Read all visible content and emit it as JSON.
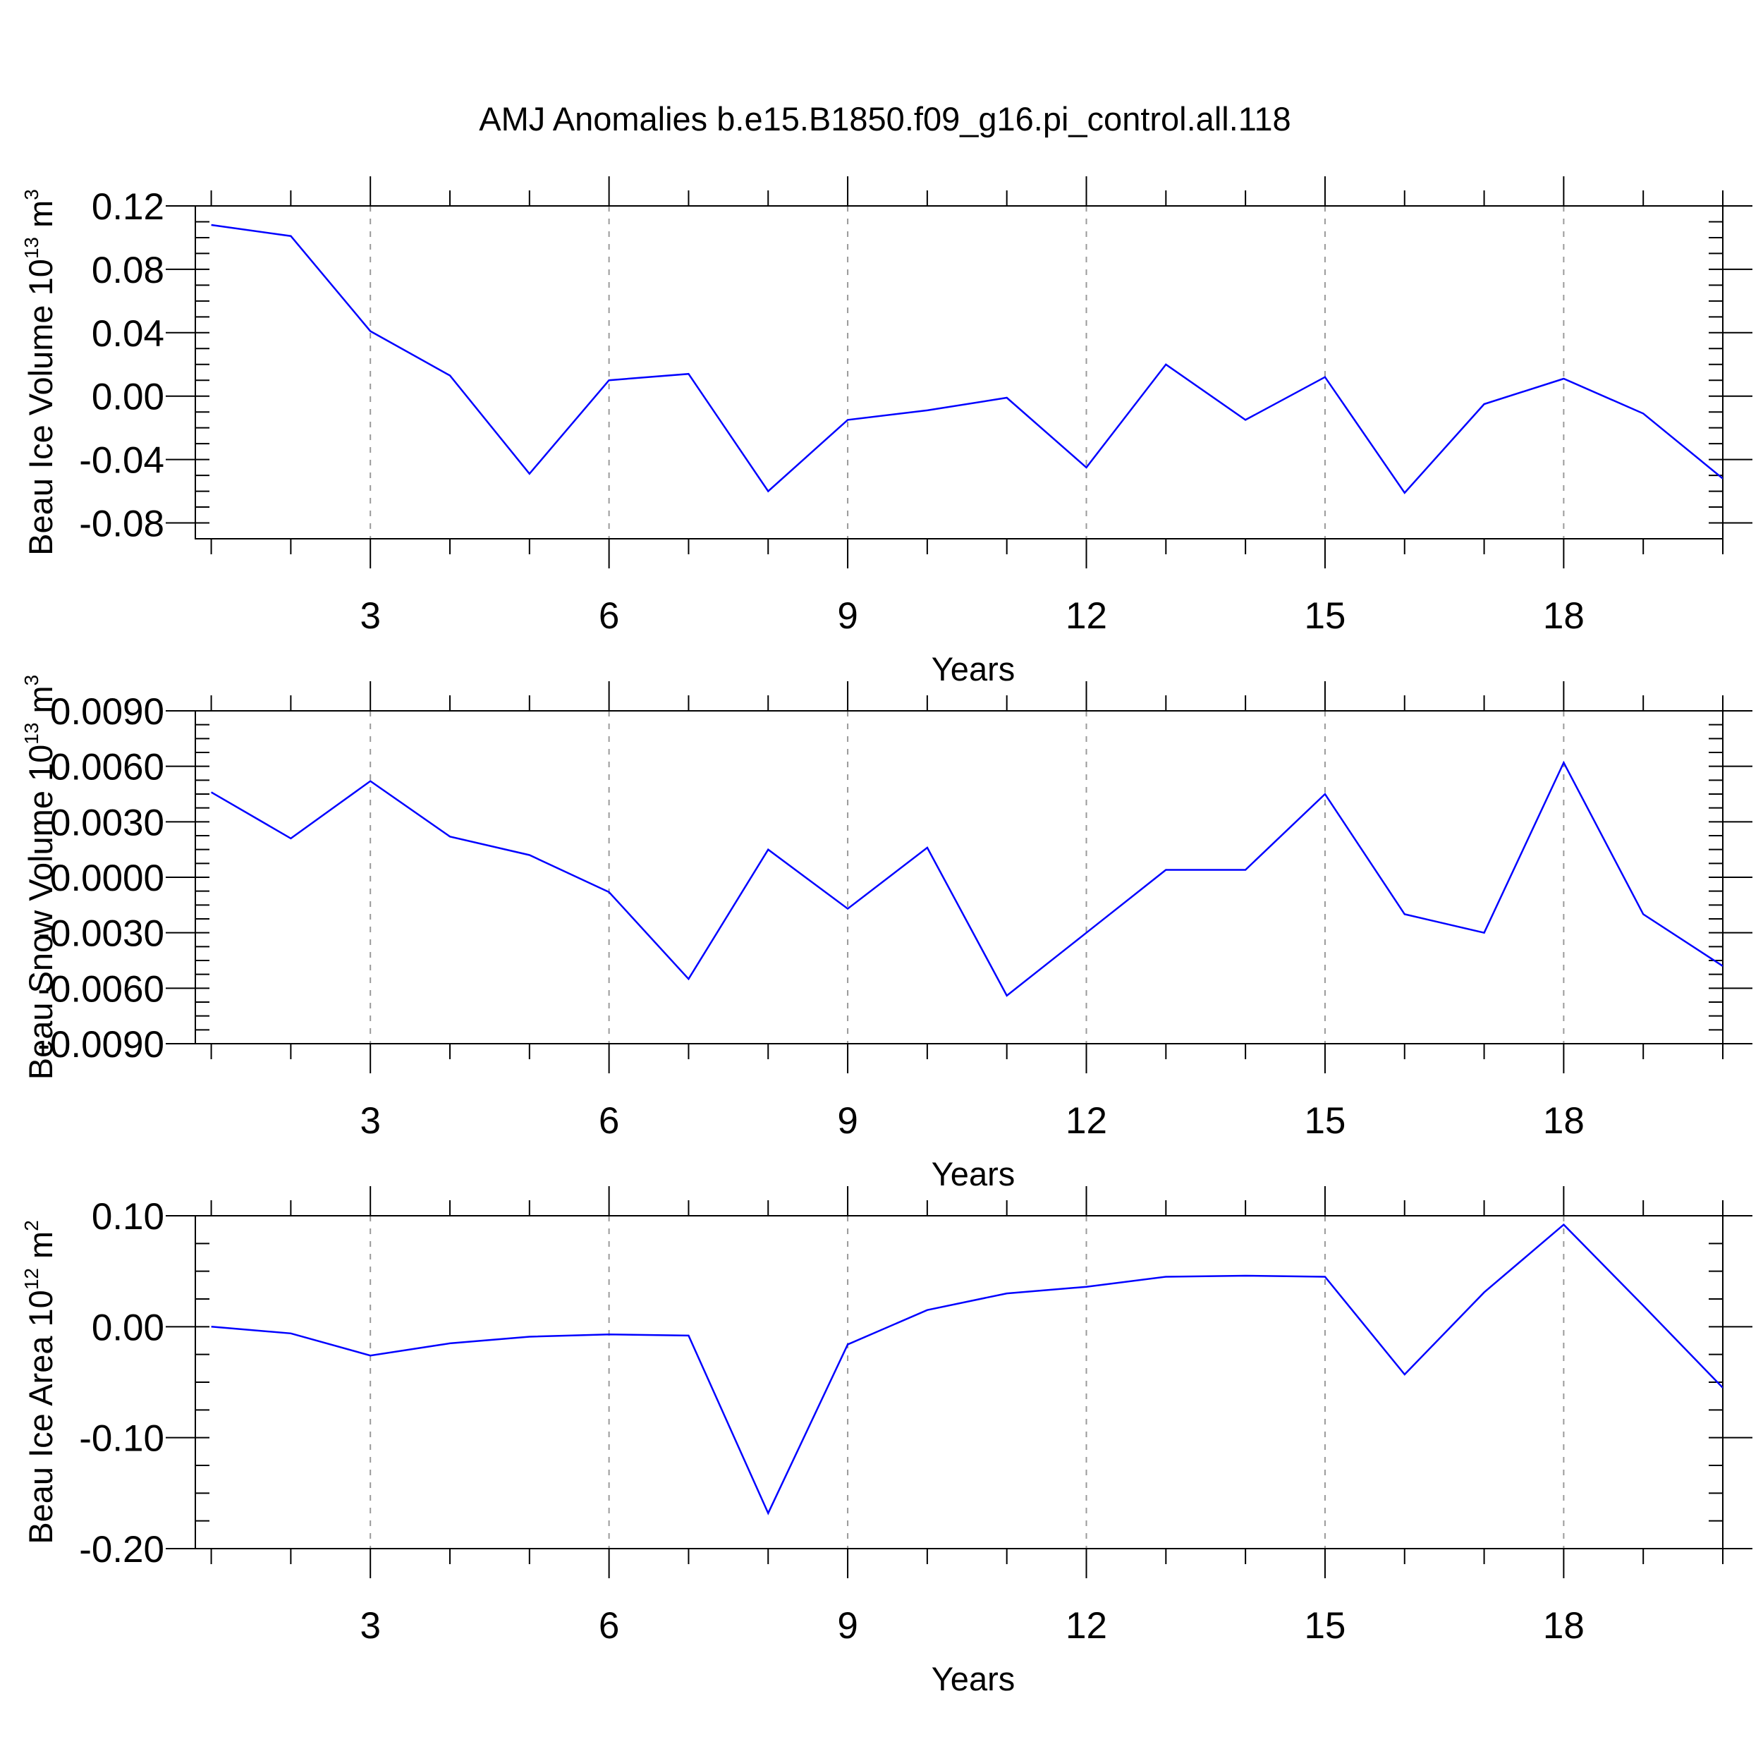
{
  "title": "AMJ Anomalies b.e15.B1850.f09_g16.pi_control.all.118",
  "chart_data": [
    {
      "type": "line",
      "ylabel": "Beau Ice Volume 10",
      "ylabel_exponent": "13",
      "ylabel_unit": " m",
      "ylabel_unit_exponent": "3",
      "xlabel": "Years",
      "x": [
        1,
        2,
        3,
        4,
        5,
        6,
        7,
        8,
        9,
        10,
        11,
        12,
        13,
        14,
        15,
        16,
        17,
        18,
        19,
        20
      ],
      "values": [
        0.108,
        0.101,
        0.041,
        0.013,
        -0.049,
        0.01,
        0.014,
        -0.06,
        -0.015,
        -0.009,
        -0.001,
        -0.045,
        0.02,
        -0.015,
        0.012,
        -0.061,
        -0.005,
        0.011,
        -0.011,
        -0.052
      ],
      "xlim": [
        0.8,
        20
      ],
      "ylim": [
        -0.09,
        0.12
      ],
      "xticks": [
        3,
        6,
        9,
        12,
        15,
        18
      ],
      "xtick_labels": [
        "3",
        "6",
        "9",
        "12",
        "15",
        "18"
      ],
      "yticks": [
        -0.08,
        -0.04,
        0.0,
        0.04,
        0.08,
        0.12
      ],
      "ytick_labels": [
        "-0.08",
        "-0.04",
        "0.00",
        "0.04",
        "0.08",
        "0.12"
      ],
      "grid": "vertical dashed at major x ticks",
      "line_color": "#0000ff"
    },
    {
      "type": "line",
      "ylabel": "Beau Snow Volume 10",
      "ylabel_exponent": "13",
      "ylabel_unit": " m",
      "ylabel_unit_exponent": "3",
      "xlabel": "Years",
      "x": [
        1,
        2,
        3,
        4,
        5,
        6,
        7,
        8,
        9,
        10,
        11,
        12,
        13,
        14,
        15,
        16,
        17,
        18,
        19,
        20
      ],
      "values": [
        0.0046,
        0.0021,
        0.0052,
        0.0022,
        0.0012,
        -0.0008,
        -0.0055,
        0.0015,
        -0.0017,
        0.0016,
        -0.0064,
        -0.003,
        0.0004,
        0.0004,
        0.0045,
        -0.002,
        -0.003,
        0.0062,
        -0.002,
        -0.0048
      ],
      "xlim": [
        0.8,
        20
      ],
      "ylim": [
        -0.009,
        0.009
      ],
      "xticks": [
        3,
        6,
        9,
        12,
        15,
        18
      ],
      "xtick_labels": [
        "3",
        "6",
        "9",
        "12",
        "15",
        "18"
      ],
      "yticks": [
        -0.009,
        -0.006,
        -0.003,
        0.0,
        0.003,
        0.006,
        0.009
      ],
      "ytick_labels": [
        "-0.0090",
        "-0.0060",
        "-0.0030",
        "0.0000",
        "0.0030",
        "0.0060",
        "0.0090"
      ],
      "grid": "vertical dashed at major x ticks",
      "line_color": "#0000ff"
    },
    {
      "type": "line",
      "ylabel": "Beau Ice Area 10",
      "ylabel_exponent": "12",
      "ylabel_unit": " m",
      "ylabel_unit_exponent": "2",
      "xlabel": "Years",
      "x": [
        1,
        2,
        3,
        4,
        5,
        6,
        7,
        8,
        9,
        10,
        11,
        12,
        13,
        14,
        15,
        16,
        17,
        18,
        19,
        20
      ],
      "values": [
        0.0,
        -0.006,
        -0.026,
        -0.015,
        -0.009,
        -0.007,
        -0.008,
        -0.168,
        -0.016,
        0.015,
        0.03,
        0.036,
        0.045,
        0.046,
        0.045,
        -0.043,
        0.031,
        0.092,
        0.019,
        -0.055
      ],
      "xlim": [
        0.8,
        20
      ],
      "ylim": [
        -0.2,
        0.1
      ],
      "xticks": [
        3,
        6,
        9,
        12,
        15,
        18
      ],
      "xtick_labels": [
        "3",
        "6",
        "9",
        "12",
        "15",
        "18"
      ],
      "yticks": [
        -0.2,
        -0.1,
        0.0,
        0.1
      ],
      "ytick_labels": [
        "-0.20",
        "-0.10",
        "0.00",
        "0.10"
      ],
      "grid": "vertical dashed at major x ticks",
      "line_color": "#0000ff"
    }
  ]
}
